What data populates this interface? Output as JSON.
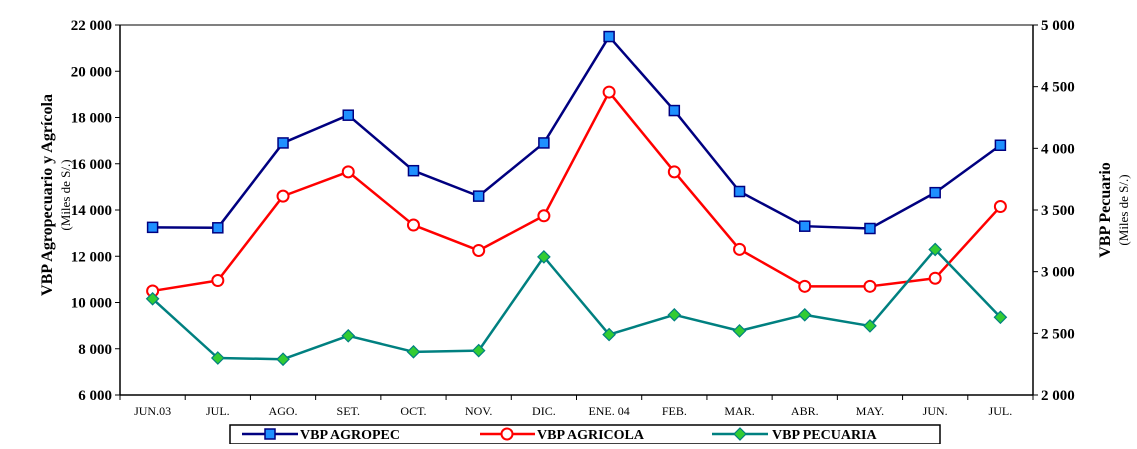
{
  "chart_data": {
    "type": "line",
    "categories": [
      "JUN.03",
      "JUL.",
      "AGO.",
      "SET.",
      "OCT.",
      "NOV.",
      "DIC.",
      "ENE. 04",
      "FEB.",
      "MAR.",
      "ABR.",
      "MAY.",
      "JUN.",
      "JUL."
    ],
    "ylabel": "VBP Agropecuario y Agrícola",
    "ylabel_sub": "(Miles de S/.)",
    "y2label": "VBP Pecuario",
    "y2label_sub": "(Miles de S/.)",
    "ylim": [
      6000,
      22000
    ],
    "yticks": [
      "6 000",
      "8 000",
      "10 000",
      "12 000",
      "14 000",
      "16 000",
      "18 000",
      "20 000",
      "22 000"
    ],
    "y2lim": [
      2000,
      5000
    ],
    "y2ticks": [
      "2 000",
      "2 500",
      "3 000",
      "3 500",
      "4 000",
      "4 500",
      "5 000"
    ],
    "grid": false,
    "legend_position": "bottom",
    "series": [
      {
        "name": "VBP AGROPEC",
        "axis": "left",
        "color": "#000080",
        "marker": "square",
        "marker_fill": "#1e90ff",
        "values": [
          13250,
          13230,
          16900,
          18100,
          15700,
          14600,
          16900,
          21500,
          18300,
          14800,
          13300,
          13200,
          14750,
          16800
        ]
      },
      {
        "name": "VBP AGRICOLA",
        "axis": "left",
        "color": "#ff0000",
        "marker": "circle",
        "marker_fill": "#ffffff",
        "values": [
          10500,
          10950,
          14600,
          15650,
          13350,
          12250,
          13750,
          19100,
          15650,
          12300,
          10700,
          10700,
          11050,
          14150
        ]
      },
      {
        "name": "VBP PECUARIA",
        "axis": "right",
        "color": "#008080",
        "marker": "diamond",
        "marker_fill": "#33cc33",
        "values": [
          2780,
          2300,
          2290,
          2480,
          2350,
          2360,
          3120,
          2490,
          2650,
          2520,
          2650,
          2560,
          3180,
          2630
        ]
      }
    ]
  }
}
